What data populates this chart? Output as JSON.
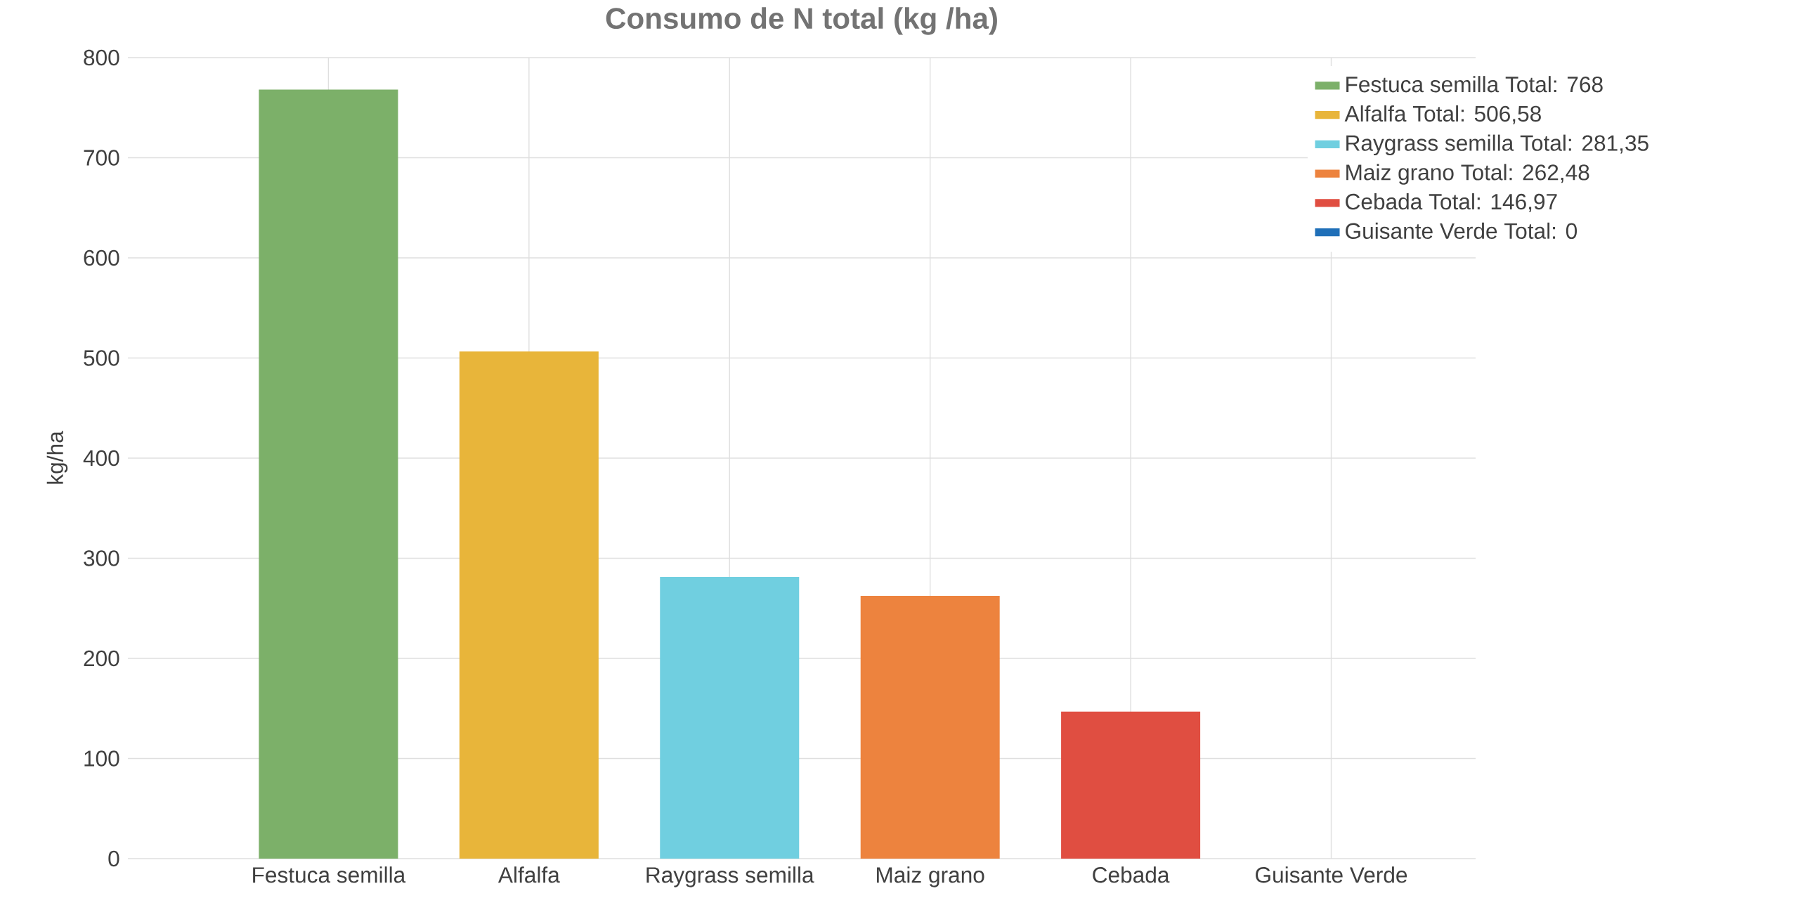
{
  "chart_data": {
    "type": "bar",
    "title": "Consumo de N total (kg /ha)",
    "ylabel": "kg/ha",
    "categories": [
      "Festuca semilla",
      "Alfalfa",
      "Raygrass semilla",
      "Maiz grano",
      "Cebada",
      "Guisante Verde"
    ],
    "series": [
      {
        "name": "Festuca semilla  Total: 768",
        "color": "#7cb069",
        "values": [
          768,
          null,
          null,
          null,
          null,
          null
        ]
      },
      {
        "name": "Alfalfa  Total: 506,58",
        "color": "#e8b53a",
        "values": [
          null,
          506.58,
          null,
          null,
          null,
          null
        ]
      },
      {
        "name": "Raygrass semilla  Total: 281,35",
        "color": "#70cfe0",
        "values": [
          null,
          null,
          281.35,
          null,
          null,
          null
        ]
      },
      {
        "name": "Maiz grano  Total: 262,48",
        "color": "#ed833e",
        "values": [
          null,
          null,
          null,
          262.48,
          null,
          null
        ]
      },
      {
        "name": "Cebada  Total: 146,97",
        "color": "#e04e41",
        "values": [
          null,
          null,
          null,
          null,
          146.97,
          null
        ]
      },
      {
        "name": "Guisante Verde  Total: 0",
        "color": "#1f6fb8",
        "values": [
          null,
          null,
          null,
          null,
          null,
          0
        ]
      }
    ],
    "ylim": [
      0,
      800
    ],
    "yticks": [
      0,
      100,
      200,
      300,
      400,
      500,
      600,
      700,
      800
    ],
    "grid": true,
    "legend": "top right"
  }
}
